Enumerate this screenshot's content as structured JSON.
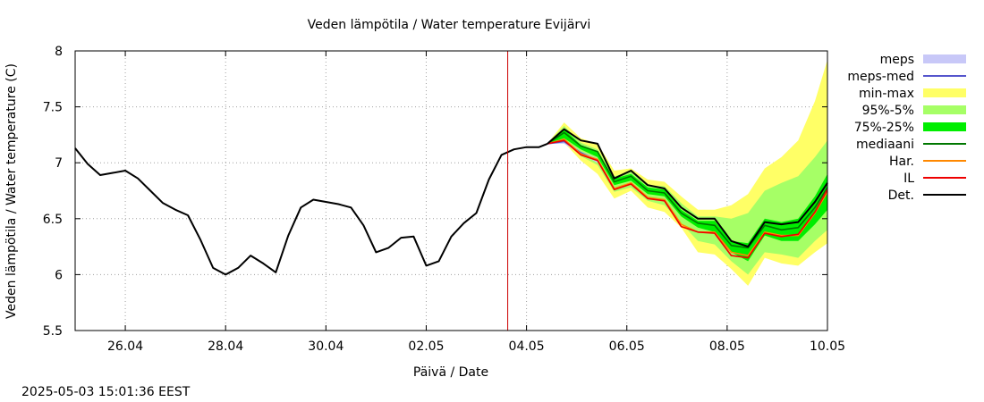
{
  "chart_data": {
    "type": "line",
    "title": "Veden lämpötila / Water temperature Evijärvi",
    "xlabel": "Päivä / Date",
    "ylabel": "Veden lämpötila / Water temperature (C)",
    "timestamp": "2025-05-03 15:01:36 EEST",
    "xlim": [
      "2025-04-25 00:00",
      "2025-05-10 00:00"
    ],
    "ylim": [
      5.5,
      8
    ],
    "grid": true,
    "grid_style": "dotted",
    "legend_position": "right",
    "x_ticks": [
      {
        "date": "2025-04-26",
        "label": "26.04"
      },
      {
        "date": "2025-04-28",
        "label": "28.04"
      },
      {
        "date": "2025-04-30",
        "label": "30.04"
      },
      {
        "date": "2025-05-02",
        "label": "02.05"
      },
      {
        "date": "2025-05-04",
        "label": "04.05"
      },
      {
        "date": "2025-05-06",
        "label": "06.05"
      },
      {
        "date": "2025-05-08",
        "label": "08.05"
      },
      {
        "date": "2025-05-10",
        "label": "10.05"
      }
    ],
    "y_ticks": [
      {
        "value": 5.5,
        "label": "5.5"
      },
      {
        "value": 6,
        "label": "6"
      },
      {
        "value": 6.5,
        "label": "6.5"
      },
      {
        "value": 7,
        "label": "7"
      },
      {
        "value": 7.5,
        "label": "7.5"
      },
      {
        "value": 8,
        "label": "8"
      }
    ],
    "forecast_start": "2025-05-03 15:00",
    "forecast_start_color": "#cc0000",
    "observed": {
      "name": "Det.",
      "color": "#000000",
      "points": [
        [
          "2025-04-25 00:00",
          7.13
        ],
        [
          "2025-04-25 06:00",
          6.99
        ],
        [
          "2025-04-25 12:00",
          6.89
        ],
        [
          "2025-04-25 18:00",
          6.91
        ],
        [
          "2025-04-26 00:00",
          6.93
        ],
        [
          "2025-04-26 06:00",
          6.86
        ],
        [
          "2025-04-26 12:00",
          6.75
        ],
        [
          "2025-04-26 18:00",
          6.64
        ],
        [
          "2025-04-27 00:00",
          6.58
        ],
        [
          "2025-04-27 06:00",
          6.53
        ],
        [
          "2025-04-27 12:00",
          6.31
        ],
        [
          "2025-04-27 18:00",
          6.06
        ],
        [
          "2025-04-28 00:00",
          6.0
        ],
        [
          "2025-04-28 06:00",
          6.06
        ],
        [
          "2025-04-28 12:00",
          6.17
        ],
        [
          "2025-04-28 18:00",
          6.1
        ],
        [
          "2025-04-29 00:00",
          6.02
        ],
        [
          "2025-04-29 06:00",
          6.35
        ],
        [
          "2025-04-29 12:00",
          6.6
        ],
        [
          "2025-04-29 18:00",
          6.67
        ],
        [
          "2025-04-30 00:00",
          6.65
        ],
        [
          "2025-04-30 06:00",
          6.63
        ],
        [
          "2025-04-30 12:00",
          6.6
        ],
        [
          "2025-04-30 18:00",
          6.44
        ],
        [
          "2025-05-01 00:00",
          6.2
        ],
        [
          "2025-05-01 06:00",
          6.24
        ],
        [
          "2025-05-01 12:00",
          6.33
        ],
        [
          "2025-05-01 18:00",
          6.34
        ],
        [
          "2025-05-02 00:00",
          6.08
        ],
        [
          "2025-05-02 06:00",
          6.12
        ],
        [
          "2025-05-02 12:00",
          6.34
        ],
        [
          "2025-05-02 18:00",
          6.46
        ],
        [
          "2025-05-03 00:00",
          6.55
        ],
        [
          "2025-05-03 06:00",
          6.85
        ],
        [
          "2025-05-03 12:00",
          7.07
        ],
        [
          "2025-05-03 18:00",
          7.12
        ],
        [
          "2025-05-04 00:00",
          7.14
        ],
        [
          "2025-05-04 06:00",
          7.14
        ],
        [
          "2025-05-04 10:00",
          7.17
        ]
      ]
    },
    "forecast_x": [
      "2025-05-04 10:00",
      "2025-05-04 18:00",
      "2025-05-05 02:00",
      "2025-05-05 10:00",
      "2025-05-05 18:00",
      "2025-05-06 02:00",
      "2025-05-06 10:00",
      "2025-05-06 18:00",
      "2025-05-07 02:00",
      "2025-05-07 10:00",
      "2025-05-07 18:00",
      "2025-05-08 02:00",
      "2025-05-08 10:00",
      "2025-05-08 18:00",
      "2025-05-09 02:00",
      "2025-05-09 10:00",
      "2025-05-09 18:00",
      "2025-05-10 00:00"
    ],
    "bands": [
      {
        "name": "min-max",
        "color": "#ffff66",
        "low": [
          7.17,
          7.18,
          7.02,
          6.9,
          6.68,
          6.75,
          6.6,
          6.56,
          6.42,
          6.2,
          6.18,
          6.05,
          5.9,
          6.15,
          6.1,
          6.08,
          6.2,
          6.28
        ],
        "high": [
          7.17,
          7.36,
          7.22,
          7.17,
          6.93,
          6.95,
          6.85,
          6.83,
          6.7,
          6.58,
          6.58,
          6.62,
          6.72,
          6.95,
          7.05,
          7.2,
          7.55,
          7.92
        ]
      },
      {
        "name": "95%-5%",
        "color": "#a6ff66",
        "low": [
          7.17,
          7.2,
          7.06,
          6.98,
          6.74,
          6.78,
          6.66,
          6.62,
          6.46,
          6.3,
          6.27,
          6.12,
          6.0,
          6.2,
          6.18,
          6.15,
          6.3,
          6.4
        ],
        "high": [
          7.17,
          7.33,
          7.18,
          7.12,
          6.88,
          6.92,
          6.8,
          6.79,
          6.64,
          6.52,
          6.52,
          6.5,
          6.55,
          6.75,
          6.82,
          6.88,
          7.05,
          7.2
        ]
      },
      {
        "name": "75%-25%",
        "color": "#00ee00",
        "low": [
          7.17,
          7.22,
          7.12,
          7.05,
          6.8,
          6.84,
          6.72,
          6.7,
          6.52,
          6.42,
          6.38,
          6.2,
          6.12,
          6.35,
          6.3,
          6.3,
          6.45,
          6.58
        ],
        "high": [
          7.17,
          7.3,
          7.16,
          7.1,
          6.86,
          6.9,
          6.78,
          6.76,
          6.58,
          6.48,
          6.48,
          6.3,
          6.28,
          6.5,
          6.47,
          6.5,
          6.7,
          6.9
        ]
      },
      {
        "name": "meps",
        "color": "#c8c8f8",
        "low": [
          7.17,
          7.17,
          7.08,
          7.0,
          null,
          null,
          null,
          null,
          null,
          null,
          null,
          null,
          null,
          null,
          null,
          null,
          null,
          null
        ],
        "high": [
          7.17,
          7.21,
          7.1,
          7.04,
          null,
          null,
          null,
          null,
          null,
          null,
          null,
          null,
          null,
          null,
          null,
          null,
          null,
          null
        ]
      }
    ],
    "series": [
      {
        "name": "meps-med",
        "color": "#5555cc",
        "values": [
          7.17,
          7.19,
          7.09,
          7.02,
          null,
          null,
          null,
          null,
          null,
          null,
          null,
          null,
          null,
          null,
          null,
          null,
          null,
          null
        ]
      },
      {
        "name": "mediaani",
        "color": "#007700",
        "values": [
          7.17,
          7.27,
          7.15,
          7.1,
          6.83,
          6.88,
          6.75,
          6.73,
          6.55,
          6.46,
          6.44,
          6.26,
          6.24,
          6.44,
          6.4,
          6.42,
          6.6,
          6.78
        ]
      },
      {
        "name": "Har.",
        "color": "#ff8800",
        "values": [
          7.17,
          7.21,
          7.08,
          7.03,
          6.77,
          6.82,
          6.69,
          6.67,
          6.45,
          6.38,
          6.38,
          6.2,
          6.17,
          6.38,
          6.35,
          6.35,
          6.55,
          6.74
        ]
      },
      {
        "name": "IL",
        "color": "#ee0000",
        "values": [
          7.17,
          7.2,
          7.07,
          7.02,
          6.76,
          6.81,
          6.68,
          6.66,
          6.43,
          6.38,
          6.37,
          6.17,
          6.15,
          6.37,
          6.34,
          6.36,
          6.56,
          6.76
        ]
      },
      {
        "name": "Det.",
        "color": "#000000",
        "values": [
          7.17,
          7.3,
          7.2,
          7.17,
          6.86,
          6.93,
          6.8,
          6.77,
          6.6,
          6.5,
          6.5,
          6.3,
          6.25,
          6.47,
          6.45,
          6.47,
          6.65,
          6.82
        ]
      }
    ],
    "legend": [
      {
        "label": "meps",
        "kind": "band",
        "color": "#c8c8f8"
      },
      {
        "label": "meps-med",
        "kind": "line",
        "color": "#5555cc"
      },
      {
        "label": "min-max",
        "kind": "band",
        "color": "#ffff66"
      },
      {
        "label": "95%-5%",
        "kind": "band",
        "color": "#a6ff66"
      },
      {
        "label": "75%-25%",
        "kind": "band",
        "color": "#00ee00"
      },
      {
        "label": "mediaani",
        "kind": "line",
        "color": "#007700"
      },
      {
        "label": "Har.",
        "kind": "line",
        "color": "#ff8800"
      },
      {
        "label": "IL",
        "kind": "line",
        "color": "#ee0000"
      },
      {
        "label": "Det.",
        "kind": "line",
        "color": "#000000"
      }
    ]
  }
}
